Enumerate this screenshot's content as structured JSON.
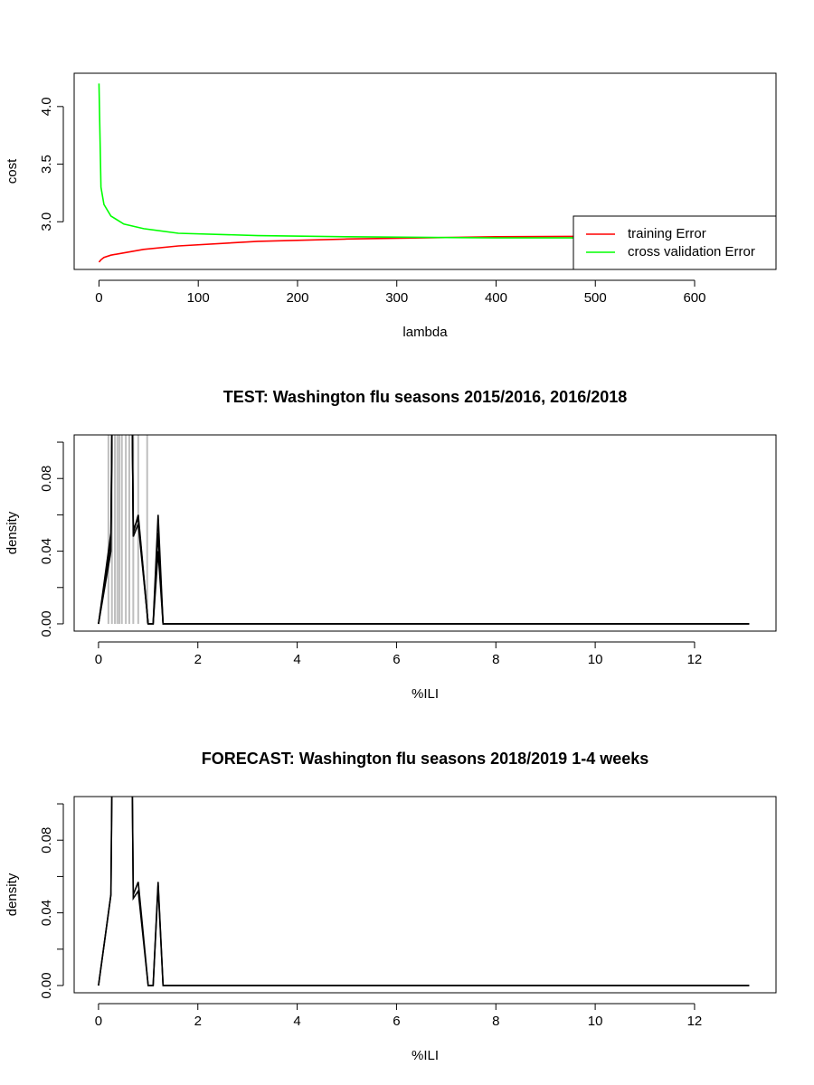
{
  "chart_data": [
    {
      "type": "line",
      "xlabel": "lambda",
      "ylabel": "cost",
      "x": [
        0,
        2,
        5,
        12,
        25,
        45,
        80,
        160,
        250,
        400,
        655
      ],
      "series": [
        {
          "name": "training Error",
          "color": "#ff0000",
          "values": [
            2.65,
            2.67,
            2.69,
            2.71,
            2.73,
            2.76,
            2.79,
            2.83,
            2.85,
            2.87,
            2.88
          ]
        },
        {
          "name": "cross validation Error",
          "color": "#00ff00",
          "values": [
            4.2,
            3.3,
            3.15,
            3.05,
            2.98,
            2.94,
            2.9,
            2.88,
            2.87,
            2.86,
            2.86
          ]
        }
      ],
      "xlim": [
        -25,
        682
      ],
      "xticks": [
        0,
        100,
        200,
        300,
        400,
        500,
        600
      ],
      "ylim": [
        2.586,
        4.289
      ],
      "yticks": [
        {
          "value": 3,
          "label": "3.0"
        },
        3.5,
        {
          "value": 4,
          "label": "4.0"
        }
      ],
      "legend": "bottomright"
    },
    {
      "type": "line",
      "title": "TEST: Washington  flu seasons 2015/2016, 2016/2018",
      "xlabel": "%ILI",
      "ylabel": "density",
      "x": [
        0,
        0.25,
        0.3,
        0.65,
        0.7,
        0.8,
        1.0,
        1.1,
        1.2,
        1.3,
        13.1
      ],
      "series": [
        {
          "color": "#000000",
          "values": [
            0,
            0.05,
            0.2,
            0.2,
            0.05,
            0.06,
            0,
            0,
            0.06,
            0,
            0
          ]
        },
        {
          "color": "#000000",
          "values": [
            0,
            0.045,
            0.2,
            0.2,
            0.048,
            0.055,
            0,
            0,
            0.05,
            0,
            0
          ]
        },
        {
          "color": "#000000",
          "values": [
            0,
            0.04,
            0.2,
            0.2,
            0.052,
            0.058,
            0,
            0,
            0.04,
            0,
            0
          ]
        }
      ],
      "vlines": {
        "color": "#bebebe",
        "x": [
          0.2,
          0.27,
          0.33,
          0.38,
          0.42,
          0.47,
          0.55,
          0.62,
          0.7,
          0.8,
          0.98
        ]
      },
      "xlim": [
        -0.49,
        13.64
      ],
      "xticks": [
        0,
        2,
        4,
        6,
        8,
        10,
        12
      ],
      "ylim": [
        -0.004,
        0.104
      ],
      "yticks": [
        {
          "value": 0,
          "label": "0.00"
        },
        {
          "value": 0.02,
          "label": null
        },
        0.04,
        {
          "value": 0.06,
          "label": null
        },
        0.08,
        {
          "value": 0.1,
          "label": null
        }
      ]
    },
    {
      "type": "line",
      "title": "FORECAST: Washington flu seasons 2018/2019 1-4 weeks",
      "xlabel": "%ILI",
      "ylabel": "density",
      "x": [
        0,
        0.25,
        0.3,
        0.65,
        0.7,
        0.8,
        1.0,
        1.1,
        1.2,
        1.3,
        13.1
      ],
      "series": [
        {
          "color": "#000000",
          "values": [
            0,
            0.05,
            0.2,
            0.2,
            0.05,
            0.057,
            0,
            0,
            0.057,
            0,
            0
          ]
        },
        {
          "color": "#000000",
          "values": [
            0,
            0.05,
            0.2,
            0.2,
            0.048,
            0.052,
            0,
            0,
            0.055,
            0,
            0
          ]
        }
      ],
      "xlim": [
        -0.49,
        13.64
      ],
      "xticks": [
        0,
        2,
        4,
        6,
        8,
        10,
        12
      ],
      "ylim": [
        -0.004,
        0.104
      ],
      "yticks": [
        {
          "value": 0,
          "label": "0.00"
        },
        {
          "value": 0.02,
          "label": null
        },
        0.04,
        {
          "value": 0.06,
          "label": null
        },
        0.08,
        {
          "value": 0.1,
          "label": null
        }
      ]
    }
  ]
}
